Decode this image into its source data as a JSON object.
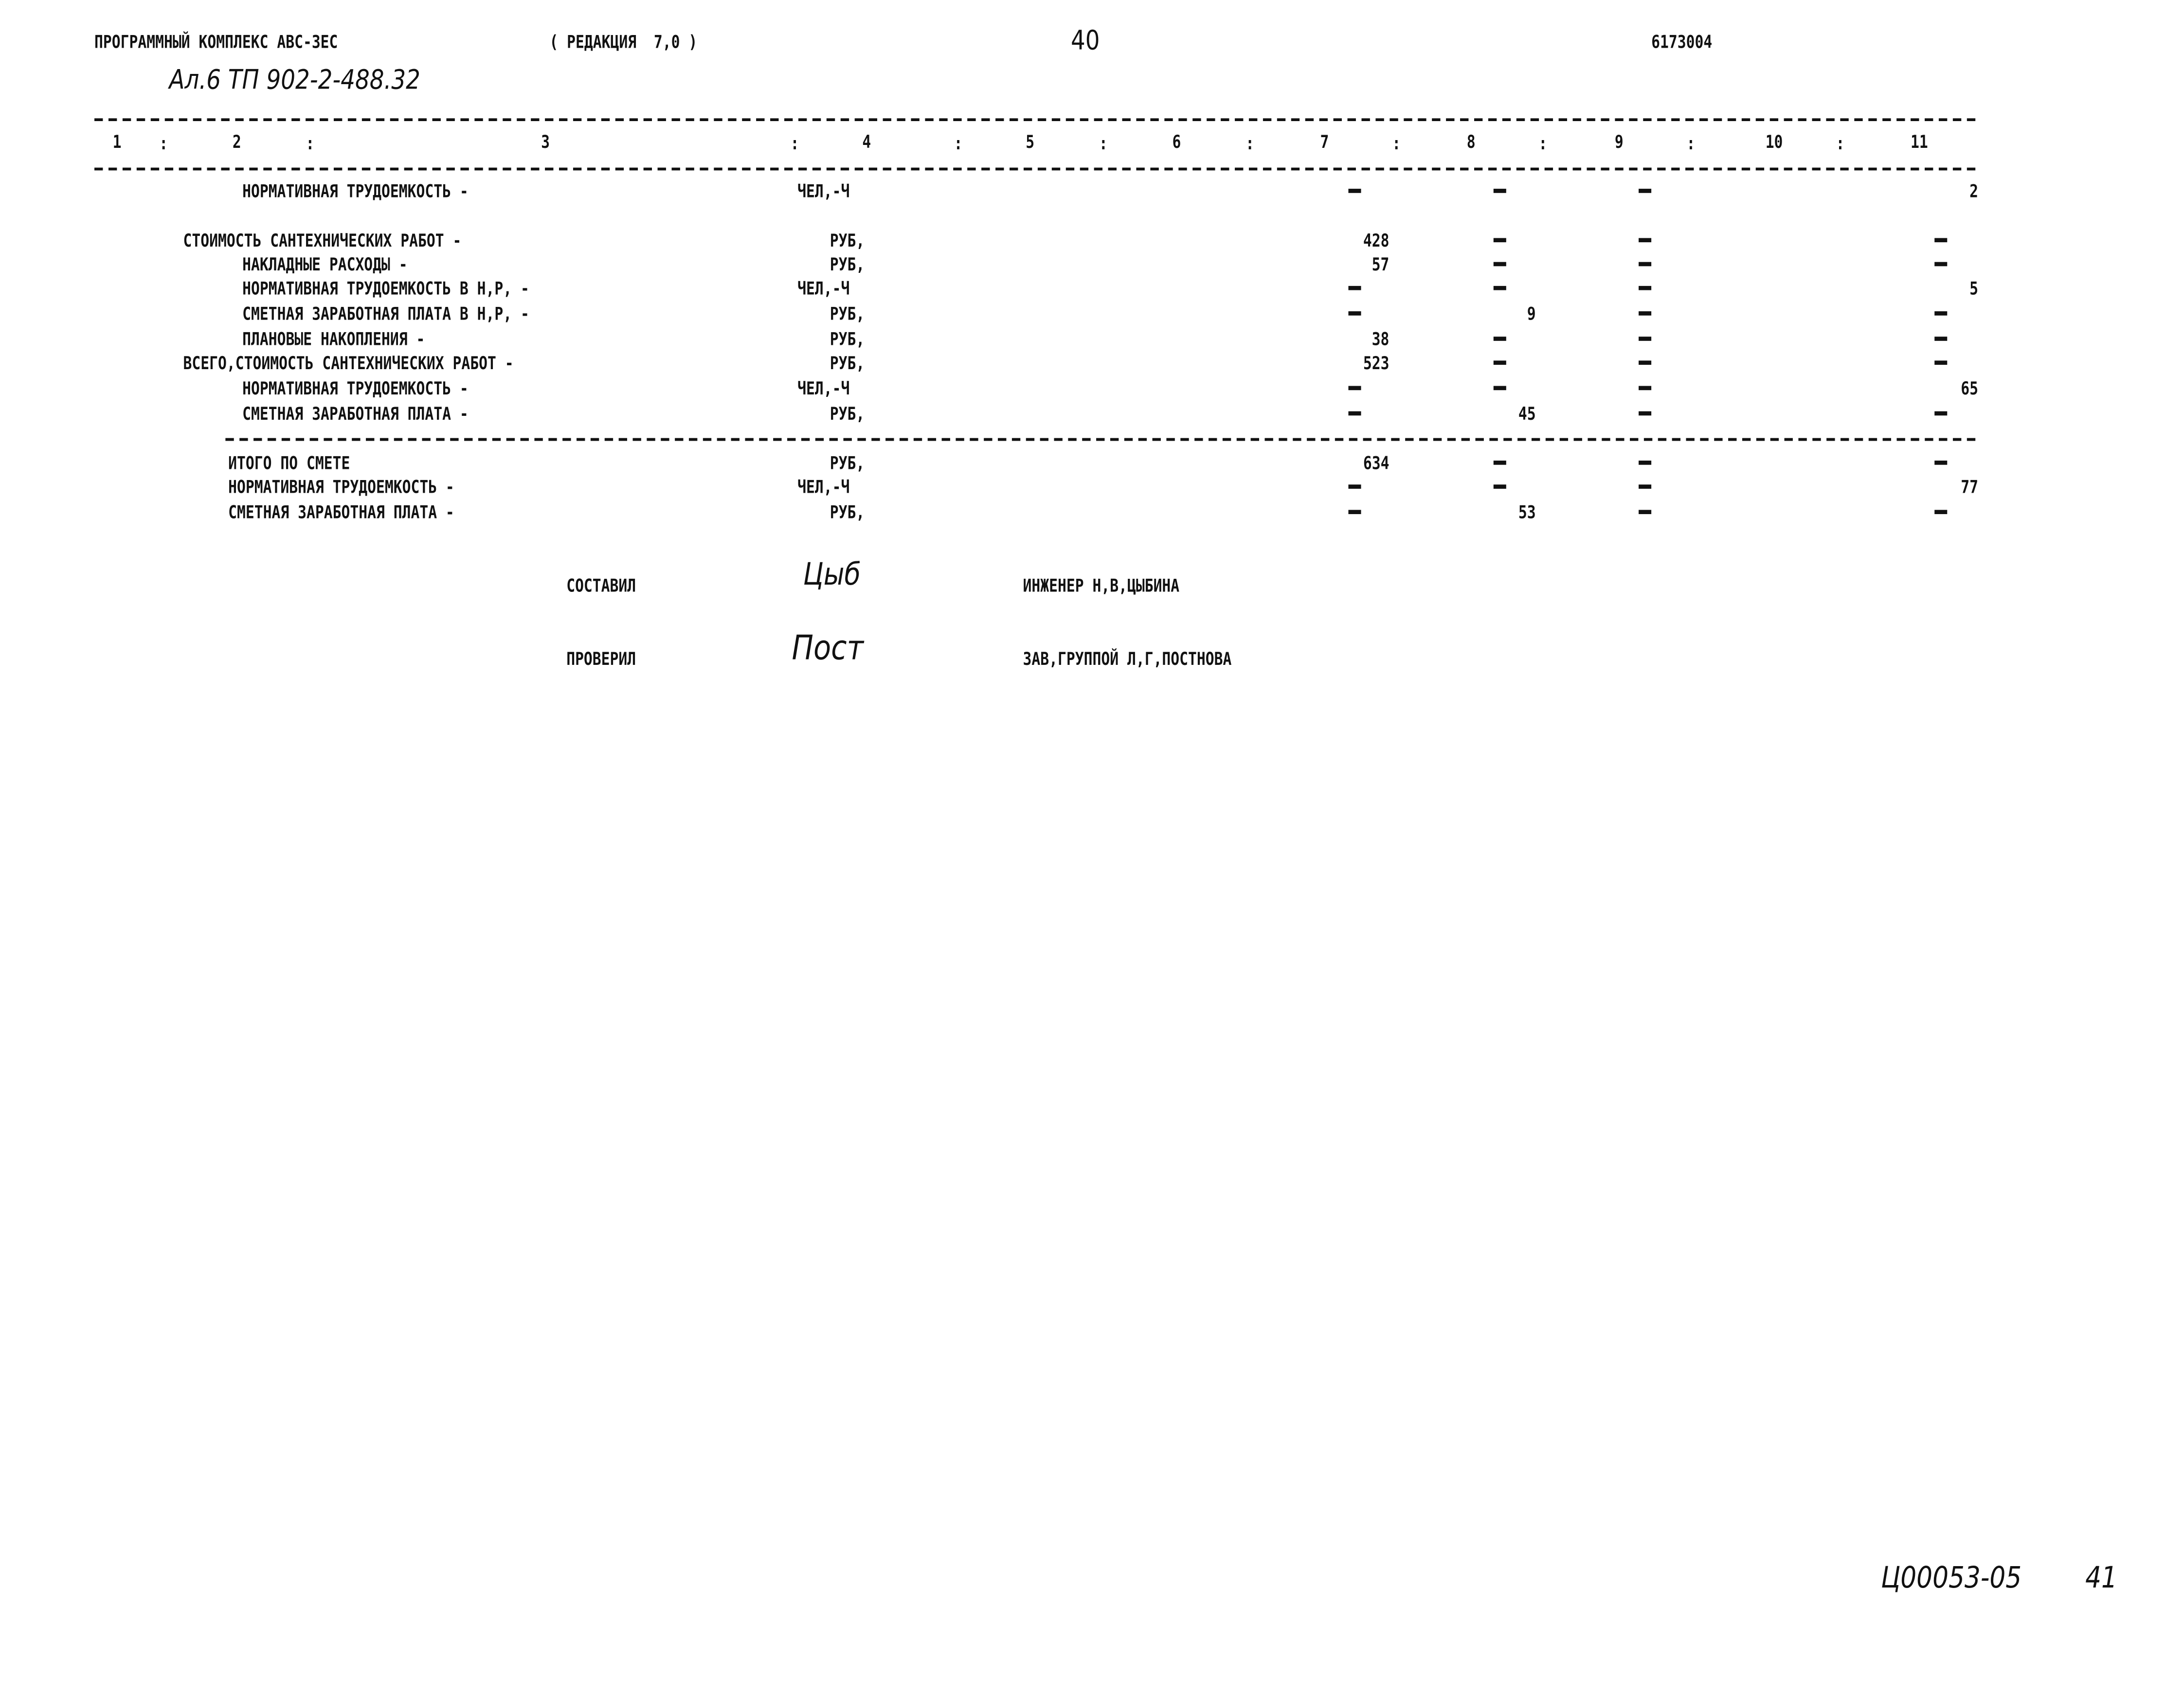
{
  "header": {
    "program": "ПРОГРАММНЫЙ КОМПЛЕКС АВС-3ЕС",
    "edition": "( РЕДАКЦИЯ  7,0 )",
    "page_number": "40",
    "code": "6173004"
  },
  "handwritten_ref": "Ал.6 ТП 902-2-488.32",
  "columns": [
    "1",
    "2",
    "3",
    "4",
    "5",
    "6",
    "7",
    "8",
    "9",
    "10",
    "11"
  ],
  "rows": [
    {
      "label": "НОРМАТИВНАЯ ТРУДОЕМКОСТЬ -",
      "indent": 1,
      "unit": "ЧЕЛ,-Ч",
      "c7": "-",
      "c8": "-",
      "c9": "-",
      "c11": "2"
    },
    {
      "label": "СТОИМОСТЬ САНТЕХНИЧЕСКИХ РАБОТ -",
      "indent": 0,
      "unit": "РУБ,",
      "c7": "428",
      "c8": "-",
      "c9": "-",
      "c11": "-"
    },
    {
      "label": "НАКЛАДНЫЕ РАСХОДЫ -",
      "indent": 1,
      "unit": "РУБ,",
      "c7": "57",
      "c8": "-",
      "c9": "-",
      "c11": "-"
    },
    {
      "label": "НОРМАТИВНАЯ ТРУДОЕМКОСТЬ В Н,Р, -",
      "indent": 1,
      "unit": "ЧЕЛ,-Ч",
      "c7": "-",
      "c8": "-",
      "c9": "-",
      "c11": "5"
    },
    {
      "label": "СМЕТНАЯ ЗАРАБОТНАЯ ПЛАТА В Н,Р, -",
      "indent": 1,
      "unit": "РУБ,",
      "c7": "-",
      "c8": "9",
      "c9": "-",
      "c11": "-"
    },
    {
      "label": "ПЛАНОВЫЕ НАКОПЛЕНИЯ -",
      "indent": 1,
      "unit": "РУБ,",
      "c7": "38",
      "c8": "-",
      "c9": "-",
      "c11": "-"
    },
    {
      "label": "ВСЕГО,СТОИМОСТЬ САНТЕХНИЧЕСКИХ РАБОТ -",
      "indent": 0,
      "unit": "РУБ,",
      "c7": "523",
      "c8": "-",
      "c9": "-",
      "c11": "-"
    },
    {
      "label": "НОРМАТИВНАЯ ТРУДОЕМКОСТЬ -",
      "indent": 1,
      "unit": "ЧЕЛ,-Ч",
      "c7": "-",
      "c8": "-",
      "c9": "-",
      "c11": "65"
    },
    {
      "label": "СМЕТНАЯ ЗАРАБОТНАЯ ПЛАТА -",
      "indent": 1,
      "unit": "РУБ,",
      "c7": "-",
      "c8": "45",
      "c9": "-",
      "c11": "-"
    }
  ],
  "totals": [
    {
      "label": "ИТОГО ПО СМЕТЕ",
      "unit": "РУБ,",
      "c7": "634",
      "c8": "-",
      "c9": "-",
      "c11": "-"
    },
    {
      "label": "НОРМАТИВНАЯ ТРУДОЕМКОСТЬ -",
      "unit": "ЧЕЛ,-Ч",
      "c7": "-",
      "c8": "-",
      "c9": "-",
      "c11": "77"
    },
    {
      "label": "СМЕТНАЯ ЗАРАБОТНАЯ ПЛАТА -",
      "unit": "РУБ,",
      "c7": "-",
      "c8": "53",
      "c9": "-",
      "c11": "-"
    }
  ],
  "signatures": {
    "compiled_label": "СОСТАВИЛ",
    "compiled_by": "ИНЖЕНЕР Н,В,ЦЫБИНА",
    "compiled_sign": "Цыб",
    "checked_label": "ПРОВЕРИЛ",
    "checked_by": "ЗАВ,ГРУППОЙ Л,Г,ПОСТНОВА",
    "checked_sign": "Пост"
  },
  "footer_stamp": {
    "code": "Ц00053-05",
    "sheet": "41"
  }
}
